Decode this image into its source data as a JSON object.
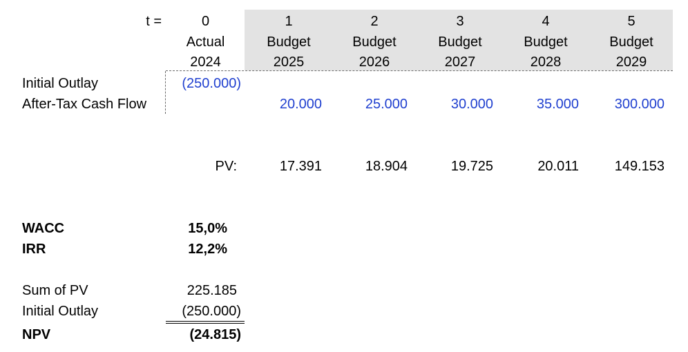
{
  "header": {
    "t_label": "t =",
    "periods": [
      "0",
      "1",
      "2",
      "3",
      "4",
      "5"
    ],
    "kinds": [
      "Actual",
      "Budget",
      "Budget",
      "Budget",
      "Budget",
      "Budget"
    ],
    "years": [
      "2024",
      "2025",
      "2026",
      "2027",
      "2028",
      "2029"
    ]
  },
  "rows": {
    "initial_outlay_label": "Initial Outlay",
    "initial_outlay_value": "(250.000)",
    "cash_flow_label": "After-Tax Cash Flow",
    "cash_flows": [
      "20.000",
      "25.000",
      "30.000",
      "35.000",
      "300.000"
    ],
    "pv_label": "PV:",
    "pvs": [
      "17.391",
      "18.904",
      "19.725",
      "20.011",
      "149.153"
    ]
  },
  "rates": {
    "wacc_label": "WACC",
    "wacc_value": "15,0%",
    "irr_label": "IRR",
    "irr_value": "12,2%"
  },
  "summary": {
    "sum_pv_label": "Sum of PV",
    "sum_pv_value": "225.185",
    "outlay_label": "Initial Outlay",
    "outlay_value": "(250.000)",
    "npv_label": "NPV",
    "npv_value": "(24.815)"
  },
  "colors": {
    "input_blue": "#1f3fcf",
    "header_fill": "#e3e3e3"
  }
}
